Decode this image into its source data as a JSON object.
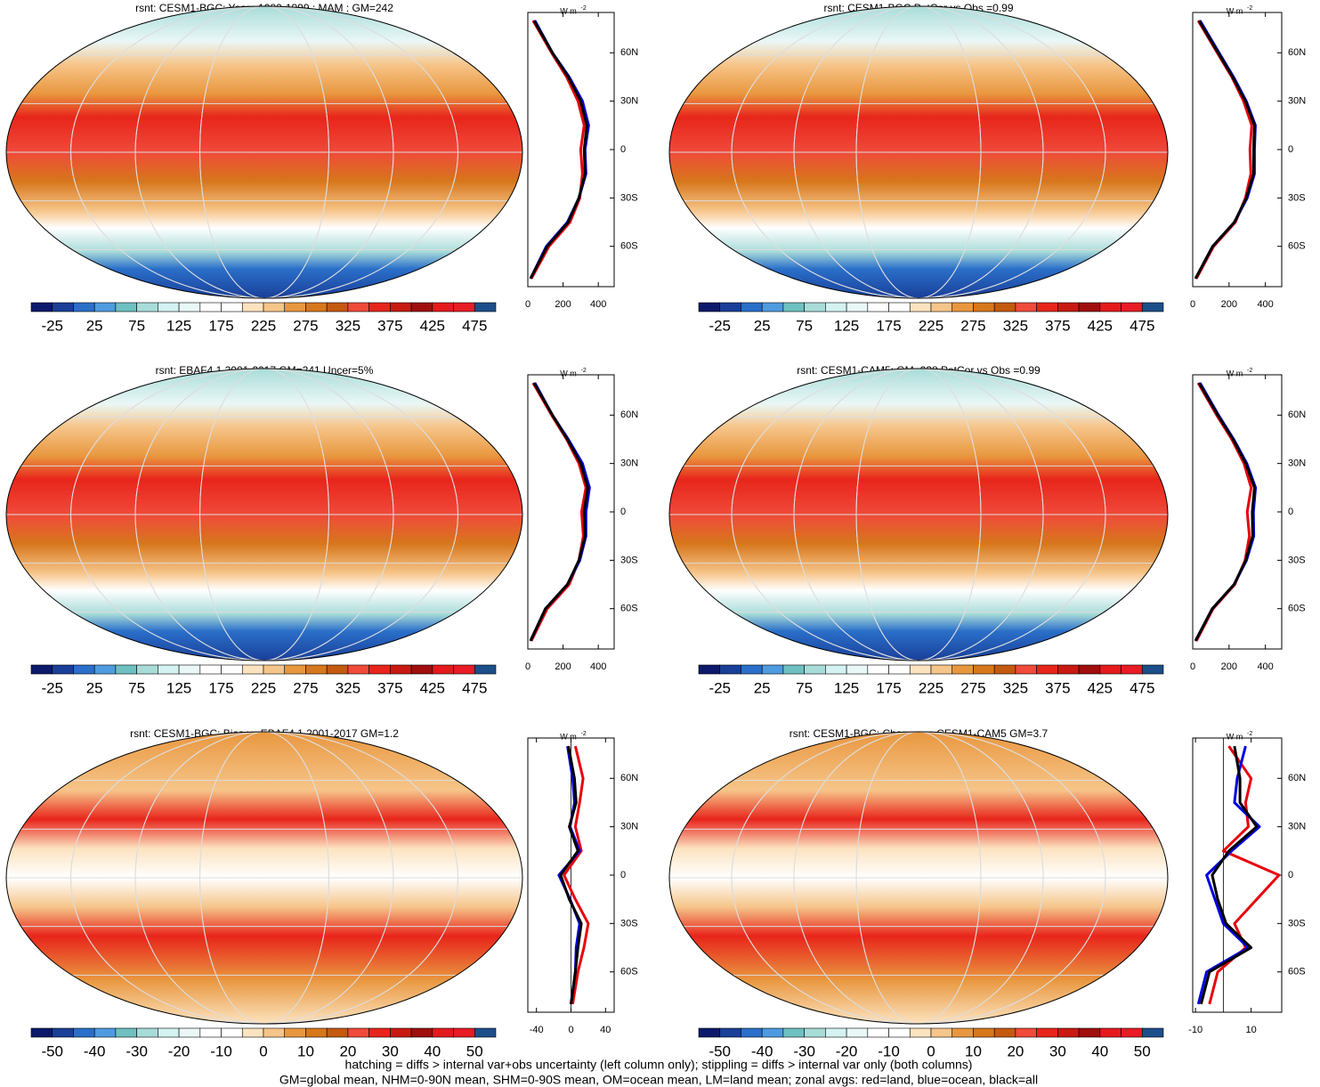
{
  "panels": [
    {
      "title": "rsnt: CESM1-BGC: Years 1980-1999 : MAM : GM=242",
      "colorbar_labels": [
        -25,
        25,
        75,
        125,
        175,
        225,
        275,
        325,
        375,
        425,
        475
      ],
      "xlim": [
        0,
        490
      ],
      "xticks": [
        0,
        200,
        400
      ],
      "series": [
        [
          20,
          120,
          240,
          295,
          310,
          300,
          320,
          285,
          220,
          135,
          30
        ],
        [
          15,
          105,
          225,
          290,
          330,
          325,
          345,
          310,
          235,
          140,
          40
        ],
        [
          15,
          110,
          230,
          290,
          325,
          320,
          335,
          300,
          230,
          140,
          35
        ]
      ]
    },
    {
      "title": "rsnt: CESM1-BGC PatCor vs Obs =0.99",
      "colorbar_labels": [
        -25,
        25,
        75,
        125,
        175,
        225,
        275,
        325,
        375,
        425,
        475
      ],
      "xlim": [
        0,
        490
      ],
      "xticks": [
        0,
        200,
        400
      ],
      "series": [
        [
          20,
          115,
          235,
          290,
          320,
          315,
          325,
          280,
          215,
          135,
          30
        ],
        [
          15,
          110,
          230,
          300,
          340,
          340,
          345,
          295,
          225,
          145,
          40
        ],
        [
          15,
          110,
          230,
          295,
          335,
          335,
          340,
          290,
          220,
          140,
          35
        ]
      ]
    },
    {
      "title": "rsnt: EBAF4.1 2001-2017 GM=241 Uncer=5%",
      "colorbar_labels": [
        -25,
        25,
        75,
        125,
        175,
        225,
        275,
        325,
        375,
        425,
        475
      ],
      "xlim": [
        0,
        490
      ],
      "xticks": [
        0,
        200,
        400
      ],
      "series": [
        [
          20,
          110,
          235,
          290,
          315,
          305,
          330,
          290,
          220,
          135,
          30
        ],
        [
          15,
          100,
          225,
          295,
          330,
          330,
          350,
          310,
          230,
          140,
          40
        ],
        [
          15,
          100,
          225,
          290,
          325,
          320,
          340,
          300,
          225,
          140,
          35
        ]
      ]
    },
    {
      "title": "rsnt: CESM1-CAM5: GM=238 PatCor vs Obs =0.99",
      "colorbar_labels": [
        -25,
        25,
        75,
        125,
        175,
        225,
        275,
        325,
        375,
        425,
        475
      ],
      "xlim": [
        0,
        490
      ],
      "xticks": [
        0,
        200,
        400
      ],
      "series": [
        [
          20,
          112,
          232,
          288,
          312,
          300,
          322,
          282,
          215,
          132,
          30
        ],
        [
          15,
          108,
          228,
          296,
          336,
          334,
          346,
          298,
          226,
          142,
          40
        ],
        [
          15,
          108,
          228,
          292,
          330,
          328,
          340,
          292,
          222,
          138,
          35
        ]
      ]
    },
    {
      "title": "rsnt: CESM1-BGC: Bias vs EBAF4.1 2001-2017 GM=1.2",
      "colorbar_labels": [
        -50,
        -40,
        -30,
        -20,
        -10,
        0,
        10,
        20,
        30,
        40,
        50
      ],
      "xlim": [
        -50,
        50
      ],
      "xticks": [
        -40,
        0,
        40
      ],
      "series": [
        [
          2,
          8,
          15,
          20,
          5,
          -8,
          12,
          5,
          10,
          14,
          5
        ],
        [
          0,
          5,
          6,
          10,
          -1,
          -14,
          10,
          -1,
          4,
          2,
          -4
        ],
        [
          0,
          5,
          8,
          12,
          -2,
          -12,
          8,
          -2,
          6,
          4,
          -3
        ]
      ]
    },
    {
      "title": "rsnt: CESM1-BGC: Change vs CESM1-CAM5 GM=3.7",
      "colorbar_labels": [
        -50,
        -40,
        -30,
        -20,
        -10,
        0,
        10,
        20,
        30,
        40,
        50
      ],
      "xlim": [
        -11,
        21
      ],
      "xticks": [
        -10,
        10
      ],
      "series": [
        [
          -5,
          -2,
          8,
          4,
          12,
          20,
          0,
          9,
          8,
          10,
          2
        ],
        [
          -9,
          -6,
          9,
          0,
          -3,
          -6,
          3,
          13,
          4,
          5,
          8
        ],
        [
          -8,
          -5,
          10,
          1,
          -2,
          -4,
          2,
          12,
          6,
          6,
          4
        ]
      ]
    }
  ],
  "series_colors": [
    "#e8000b",
    "#0000e0",
    "#000000"
  ],
  "zonal_lat": [
    -80,
    -60,
    -45,
    -30,
    -15,
    0,
    15,
    30,
    45,
    60,
    80
  ],
  "zonal_ylim": [
    -85,
    85
  ],
  "zonal_yticks": [
    {
      "value": 60,
      "label": "60N"
    },
    {
      "value": 30,
      "label": "30N"
    },
    0,
    {
      "value": -30,
      "label": "30S"
    },
    {
      "value": -60,
      "label": "60S"
    }
  ],
  "zonal_unit": "W m",
  "zonal_unit_exp": "-2",
  "palette": [
    "#0d1a6b",
    "#1a3f99",
    "#2a6fc9",
    "#4f9be0",
    "#6fc0c0",
    "#a8dcd9",
    "#d4f2f2",
    "#eaf7f7",
    "#ffffff",
    "#ffffff",
    "#fce3c0",
    "#f6c58a",
    "#e9973f",
    "#d7771c",
    "#c45a10",
    "#f04a3a",
    "#e8251b",
    "#c81a12",
    "#a00e0e",
    "#e41a1c",
    "#e81c24",
    "#1c4f8a"
  ],
  "footer": [
    "hatching = diffs > internal var+obs uncertainty (left column only); stippling = diffs > internal var only (both columns)",
    "GM=global mean, NHM=0-90N mean, SHM=0-90S mean, OM=ocean mean, LM=land mean; zonal avgs: red=land, blue=ocean, black=all"
  ]
}
